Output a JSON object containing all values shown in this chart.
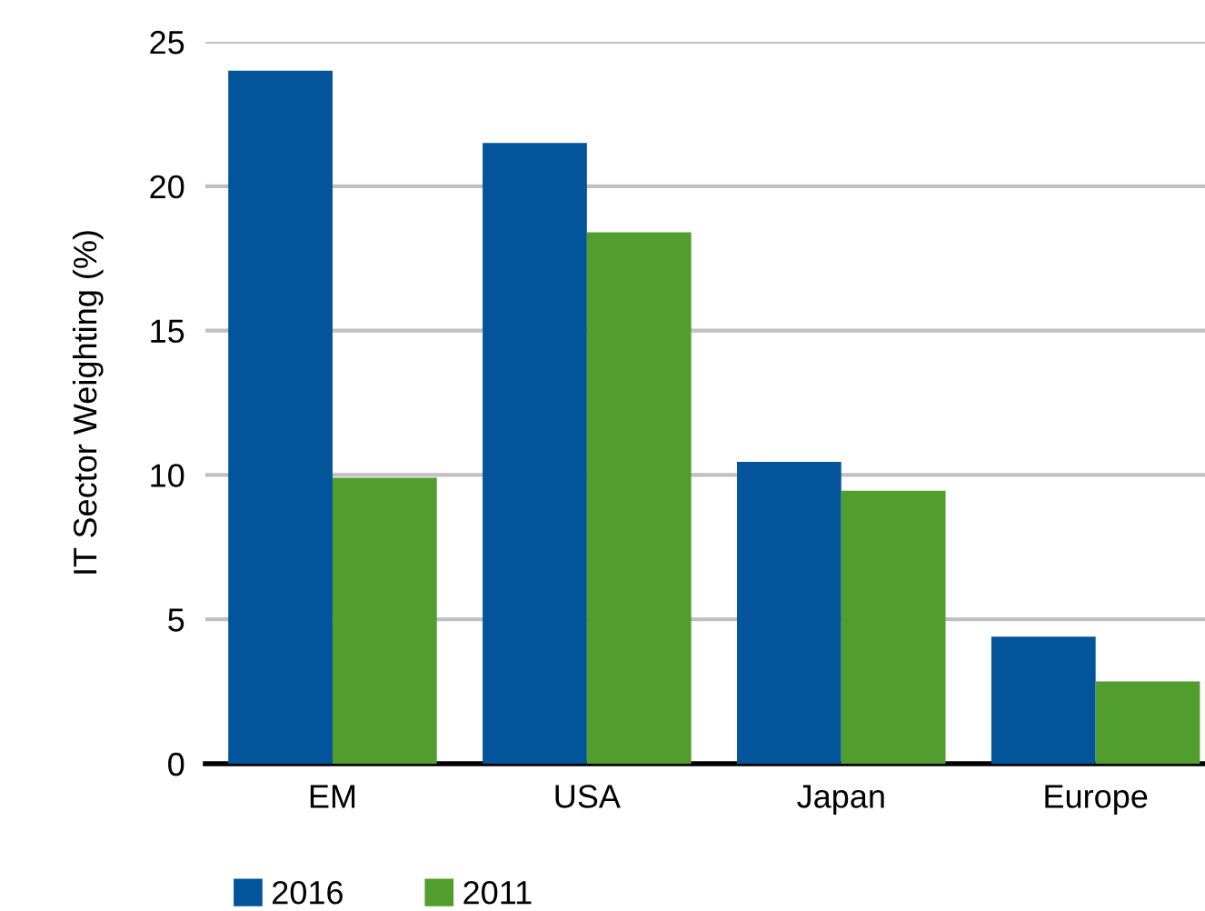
{
  "chart_data": {
    "type": "bar",
    "ylabel": "IT Sector Weighting (%)",
    "categories": [
      "EM",
      "USA",
      "Japan",
      "Europe"
    ],
    "series": [
      {
        "name": "2016",
        "color": "#02559a",
        "values": [
          24,
          21.5,
          10.45,
          4.4
        ]
      },
      {
        "name": "2011",
        "color": "#519e2f",
        "values": [
          9.9,
          18.4,
          9.45,
          2.85
        ]
      }
    ],
    "ylim": [
      0,
      25
    ],
    "yticks": [
      0,
      5,
      10,
      15,
      20,
      25
    ],
    "grid": "y",
    "legend": "bottom"
  }
}
